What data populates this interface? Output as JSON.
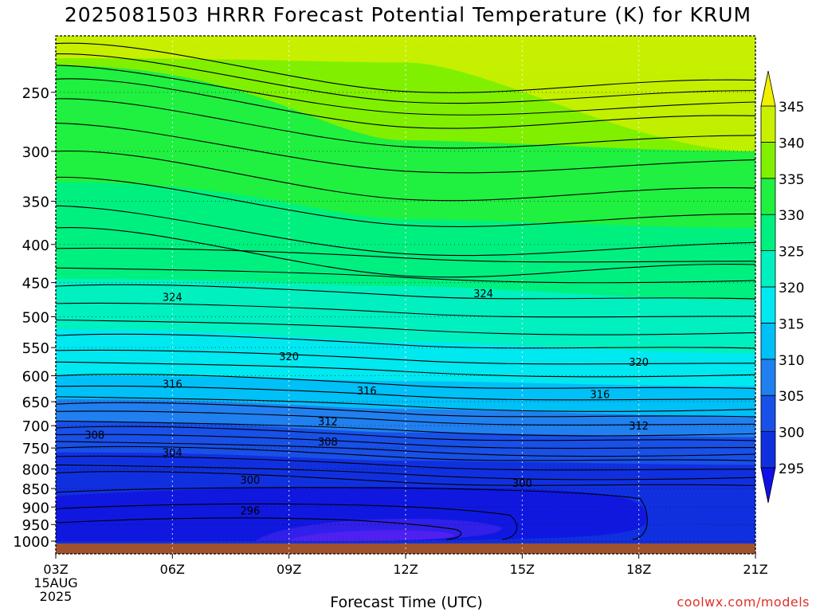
{
  "chart_data": {
    "type": "heatmap",
    "title": "2025081503 HRRR Forecast Potential Temperature (K) for KRUM",
    "xlabel": "Forecast Time (UTC)",
    "ylabel": "",
    "y_scale": "log-pressure (hPa), inverted",
    "ylim": [
      1040,
      210
    ],
    "x_ticks": [
      "03Z",
      "06Z",
      "09Z",
      "12Z",
      "15Z",
      "18Z",
      "21Z"
    ],
    "x_date_labels": [
      "15AUG",
      "2025"
    ],
    "y_ticks": [
      250,
      300,
      350,
      400,
      450,
      500,
      550,
      600,
      650,
      700,
      750,
      800,
      850,
      900,
      950,
      1000
    ],
    "grid": true,
    "colorbar": {
      "levels": [
        295,
        300,
        305,
        310,
        315,
        320,
        325,
        330,
        335,
        340,
        345
      ],
      "colors": [
        "#1010e8",
        "#1030e0",
        "#1850e8",
        "#2080f0",
        "#00c0f8",
        "#00e8f0",
        "#00f0c0",
        "#00f080",
        "#20f040",
        "#80f000",
        "#c8f000",
        "#f0f000"
      ],
      "extend": "both"
    },
    "contour_labels": [
      {
        "value": "324",
        "time": "06Z",
        "pressure": 470
      },
      {
        "value": "324",
        "time": "14Z",
        "pressure": 465
      },
      {
        "value": "320",
        "time": "09Z",
        "pressure": 565
      },
      {
        "value": "320",
        "time": "18Z",
        "pressure": 575
      },
      {
        "value": "316",
        "time": "06Z",
        "pressure": 615
      },
      {
        "value": "316",
        "time": "11Z",
        "pressure": 628
      },
      {
        "value": "316",
        "time": "17Z",
        "pressure": 635
      },
      {
        "value": "312",
        "time": "10Z",
        "pressure": 690
      },
      {
        "value": "312",
        "time": "18Z",
        "pressure": 700
      },
      {
        "value": "308",
        "time": "04Z",
        "pressure": 720
      },
      {
        "value": "308",
        "time": "10Z",
        "pressure": 735
      },
      {
        "value": "304",
        "time": "06Z",
        "pressure": 760
      },
      {
        "value": "300",
        "time": "08Z",
        "pressure": 827
      },
      {
        "value": "300",
        "time": "15Z",
        "pressure": 835
      },
      {
        "value": "296",
        "time": "08Z",
        "pressure": 910
      }
    ],
    "surface_fill": "#a0522d"
  },
  "watermark": "coolwx.com/models"
}
